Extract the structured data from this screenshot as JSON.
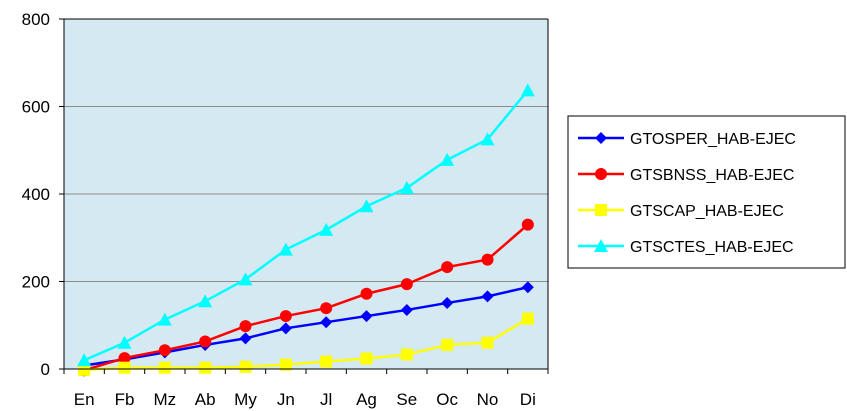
{
  "chart_data": {
    "type": "line",
    "title": "",
    "xlabel": "",
    "ylabel": "",
    "categories": [
      "En",
      "Fb",
      "Mz",
      "Ab",
      "My",
      "Jn",
      "Jl",
      "Ag",
      "Se",
      "Oc",
      "No",
      "Di"
    ],
    "ylim": [
      0,
      800
    ],
    "yticks": [
      0,
      200,
      400,
      600,
      800
    ],
    "grid": "horizontal",
    "legend_position": "right",
    "plot_background": "#d4e9f2",
    "series": [
      {
        "name": "GTOSPER_HAB-EJEC",
        "color": "#0000ff",
        "marker": "diamond",
        "values": [
          8,
          22,
          38,
          55,
          70,
          93,
          107,
          121,
          135,
          151,
          166,
          187
        ]
      },
      {
        "name": "GTSBNSS_HAB-EJEC",
        "color": "#ff0000",
        "marker": "circle",
        "values": [
          -3,
          25,
          43,
          63,
          98,
          121,
          139,
          172,
          194,
          233,
          250,
          330
        ]
      },
      {
        "name": "GTSCAP_HAB-EJEC",
        "color": "#ffff00",
        "marker": "square",
        "values": [
          -2,
          3,
          3,
          3,
          5,
          10,
          17,
          24,
          33,
          55,
          60,
          115
        ]
      },
      {
        "name": "GTSCTES_HAB-EJEC",
        "color": "#00ffff",
        "marker": "triangle",
        "values": [
          20,
          60,
          113,
          155,
          205,
          273,
          318,
          372,
          414,
          478,
          525,
          637
        ]
      }
    ]
  }
}
